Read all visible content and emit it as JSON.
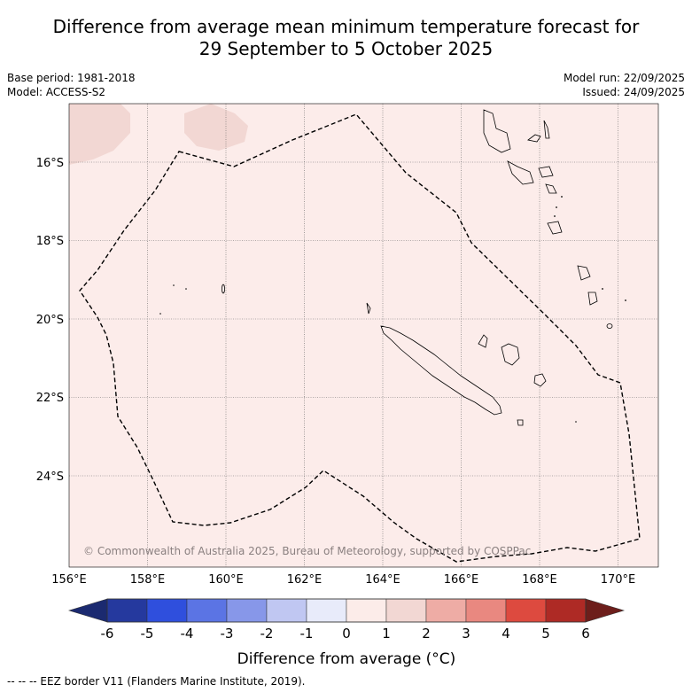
{
  "title": {
    "line1": "Difference from average mean minimum temperature forecast for",
    "line2": "29 September to 5 October 2025"
  },
  "meta_left": {
    "base_period": "Base period: 1981-2018",
    "model": "Model: ACCESS-S2"
  },
  "meta_right": {
    "model_run": "Model run: 22/09/2025",
    "issued": "Issued: 24/09/2025"
  },
  "map": {
    "background_color": "#fcecea",
    "anomaly_patch_color": "#f2d7d3",
    "lon_ticks": [
      "156°E",
      "158°E",
      "160°E",
      "162°E",
      "164°E",
      "166°E",
      "168°E",
      "170°E"
    ],
    "lat_ticks": [
      "16°S",
      "18°S",
      "20°S",
      "22°S",
      "24°S"
    ],
    "copyright": "© Commonwealth of Australia 2025, Bureau of Meteorology, supported by COSPPac"
  },
  "colorbar": {
    "label": "Difference from average (°C)",
    "ticks": [
      "-6",
      "-5",
      "-4",
      "-3",
      "-2",
      "-1",
      "0",
      "1",
      "2",
      "3",
      "4",
      "5",
      "6"
    ],
    "colors": [
      "#25399e",
      "#2f4fdd",
      "#5b74e4",
      "#8797e9",
      "#c0c7f2",
      "#e8ebfa",
      "#fcece9",
      "#f2d7d3",
      "#eeaca5",
      "#e98880",
      "#dd4a3f",
      "#ae2a25"
    ],
    "low_extend_color": "#1b2a70",
    "high_extend_color": "#6d1e1b"
  },
  "footer": "--  --  -- EEZ border V11 (Flanders Marine Institute, 2019)."
}
